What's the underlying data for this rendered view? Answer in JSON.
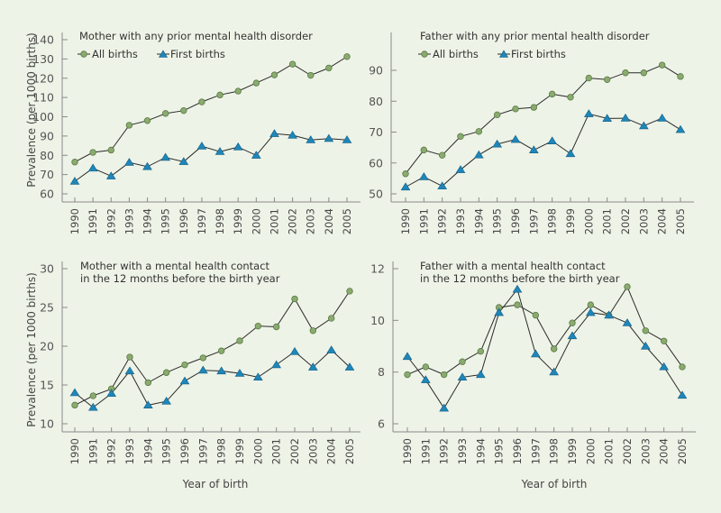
{
  "chart_data": [
    {
      "id": "mother-prior",
      "type": "line",
      "title_lines": [
        "Mother with any prior mental health disorder"
      ],
      "show_legend": true,
      "ylabel": "Prevalence (per 1000 births)",
      "xlabel": "",
      "x": [
        "1990",
        "1991",
        "1992",
        "1993",
        "1994",
        "1995",
        "1996",
        "1997",
        "1998",
        "1999",
        "2000",
        "2001",
        "2002",
        "2003",
        "2004",
        "2005"
      ],
      "yticks": [
        60,
        70,
        80,
        90,
        100,
        110,
        120,
        130,
        140
      ],
      "ylim": [
        60,
        140
      ],
      "series": [
        {
          "name": "All births",
          "marker": "circle",
          "values": [
            76.5,
            81.5,
            82.7,
            95.6,
            98.0,
            101.7,
            103.2,
            107.7,
            111.3,
            113.3,
            117.5,
            121.7,
            127.3,
            121.5,
            125.3,
            131.2
          ]
        },
        {
          "name": "First births",
          "marker": "triangle",
          "values": [
            66.5,
            73.3,
            69.2,
            76.3,
            74.1,
            78.9,
            76.7,
            84.7,
            81.9,
            84.3,
            80.0,
            91.2,
            90.4,
            88.0,
            88.7,
            88.0
          ]
        }
      ]
    },
    {
      "id": "father-prior",
      "type": "line",
      "title_lines": [
        "Father with any prior mental health disorder"
      ],
      "show_legend": true,
      "ylabel": "",
      "xlabel": "",
      "x": [
        "1990",
        "1991",
        "1992",
        "1993",
        "1994",
        "1995",
        "1996",
        "1997",
        "1998",
        "1999",
        "2000",
        "2001",
        "2002",
        "2003",
        "2004",
        "2005"
      ],
      "yticks": [
        50,
        60,
        70,
        80,
        90
      ],
      "ylim": [
        50,
        90
      ],
      "series": [
        {
          "name": "All births",
          "marker": "circle",
          "values": [
            56.5,
            64.2,
            62.5,
            68.6,
            70.2,
            75.6,
            77.5,
            78.0,
            82.3,
            81.3,
            87.5,
            87.0,
            89.2,
            89.2,
            91.7,
            88.0
          ]
        },
        {
          "name": "First births",
          "marker": "triangle",
          "values": [
            52.2,
            55.5,
            52.5,
            57.8,
            62.6,
            66.1,
            67.6,
            64.2,
            67.1,
            63.0,
            75.9,
            74.4,
            74.5,
            72.0,
            74.5,
            70.8
          ]
        }
      ]
    },
    {
      "id": "mother-contact",
      "type": "line",
      "title_lines": [
        "Mother with a mental health contact",
        "in the 12 months before the birth year"
      ],
      "show_legend": false,
      "ylabel": "Prevalence (per 1000 births)",
      "xlabel": "Year of birth",
      "x": [
        "1990",
        "1991",
        "1992",
        "1993",
        "1994",
        "1995",
        "1996",
        "1997",
        "1998",
        "1999",
        "2000",
        "2001",
        "2002",
        "2003",
        "2004",
        "2005"
      ],
      "yticks": [
        10,
        15,
        20,
        25,
        30
      ],
      "ylim": [
        10,
        30
      ],
      "series": [
        {
          "name": "All births",
          "marker": "circle",
          "values": [
            12.4,
            13.6,
            14.5,
            18.6,
            15.3,
            16.6,
            17.6,
            18.5,
            19.4,
            20.7,
            22.6,
            22.5,
            26.1,
            22.0,
            23.6,
            27.1
          ]
        },
        {
          "name": "First births",
          "marker": "triangle",
          "values": [
            14.0,
            12.1,
            13.9,
            16.8,
            12.4,
            12.9,
            15.5,
            16.9,
            16.8,
            16.5,
            16.0,
            17.6,
            19.3,
            17.3,
            19.5,
            17.3
          ]
        }
      ]
    },
    {
      "id": "father-contact",
      "type": "line",
      "title_lines": [
        "Father with a mental health contact",
        "in the 12 months before the birth year"
      ],
      "show_legend": false,
      "ylabel": "",
      "xlabel": "Year of birth",
      "x": [
        "1990",
        "1991",
        "1992",
        "1993",
        "1994",
        "1995",
        "1996",
        "1997",
        "1998",
        "1999",
        "2000",
        "2001",
        "2002",
        "2003",
        "2004",
        "2005"
      ],
      "yticks": [
        6,
        8,
        10,
        12
      ],
      "ylim": [
        6,
        12
      ],
      "series": [
        {
          "name": "All births",
          "marker": "circle",
          "values": [
            7.9,
            8.2,
            7.9,
            8.4,
            8.8,
            10.5,
            10.6,
            10.2,
            8.9,
            9.9,
            10.6,
            10.2,
            11.3,
            9.6,
            9.2,
            8.2
          ]
        },
        {
          "name": "First births",
          "marker": "triangle",
          "values": [
            8.6,
            7.7,
            6.6,
            7.8,
            7.9,
            10.3,
            11.2,
            8.7,
            8.0,
            9.4,
            10.3,
            10.2,
            9.9,
            9.0,
            8.2,
            7.1
          ]
        }
      ]
    }
  ],
  "colors": {
    "background": "#eef3e7",
    "all_births": "#8aab6e",
    "first_births": "#1f86b8",
    "line": "#2a2a2a",
    "axis": "#8a8a8a"
  }
}
